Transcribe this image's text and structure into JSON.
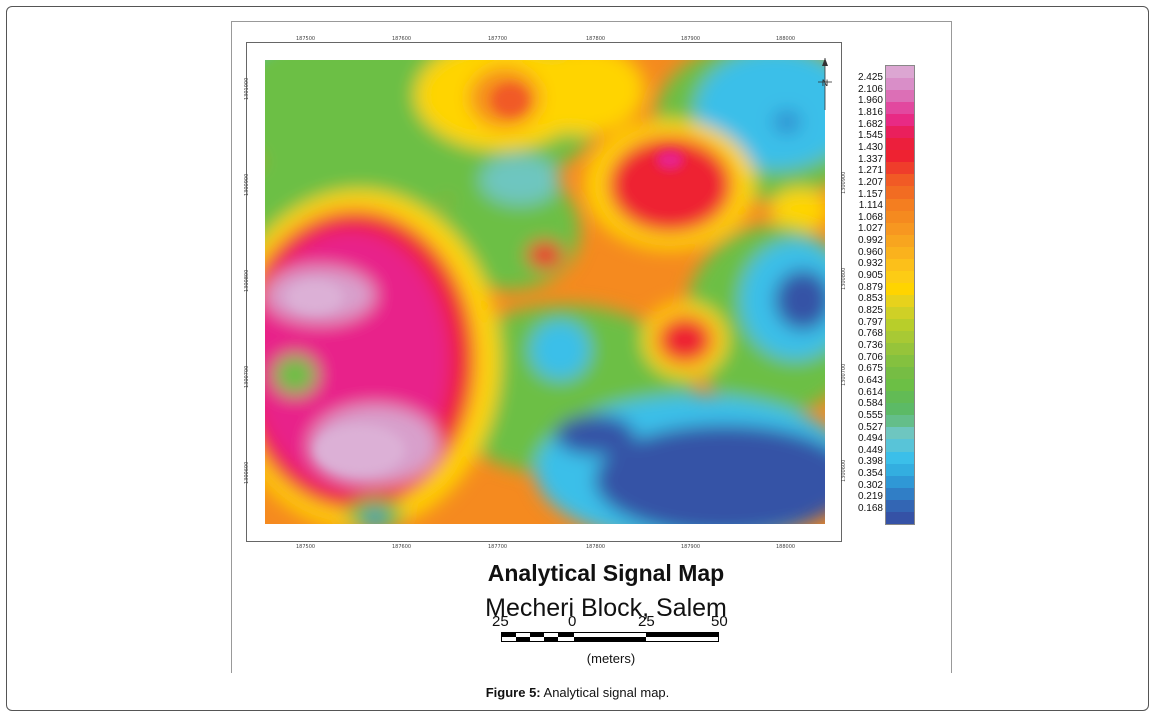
{
  "map": {
    "title": "Analytical Signal Map",
    "subtitle": "Mecheri Block, Salem",
    "x_tick_labels": [
      "187500",
      "187600",
      "187700",
      "187800",
      "187900",
      "188000"
    ],
    "y_tick_labels": [
      "1301000",
      "1300900",
      "1300800",
      "1300700",
      "1300600"
    ],
    "north_label": "N",
    "colors": {
      "pink": "#d8a0cc",
      "magenta": "#e8208a",
      "red": "#ee2231",
      "orange": "#f58a1f",
      "yellow": "#ffd400",
      "lightgreen": "#a8d12f",
      "green": "#6cbf45",
      "teal": "#6ec6c0",
      "lightblue": "#3bbfe9",
      "blue": "#2f8fd0",
      "darkblue": "#3552a6"
    }
  },
  "legend": {
    "values": [
      "2.425",
      "2.106",
      "1.960",
      "1.816",
      "1.682",
      "1.545",
      "1.430",
      "1.337",
      "1.271",
      "1.207",
      "1.157",
      "1.114",
      "1.068",
      "1.027",
      "0.992",
      "0.960",
      "0.932",
      "0.905",
      "0.879",
      "0.853",
      "0.825",
      "0.797",
      "0.768",
      "0.736",
      "0.706",
      "0.675",
      "0.643",
      "0.614",
      "0.584",
      "0.555",
      "0.527",
      "0.494",
      "0.449",
      "0.398",
      "0.354",
      "0.302",
      "0.219",
      "0.168"
    ],
    "swatch_colors": [
      "#dca6d2",
      "#d98ec8",
      "#dc6fb6",
      "#e2489f",
      "#e82a84",
      "#ea1f5c",
      "#ec1f3c",
      "#ee2231",
      "#ef3d2b",
      "#f15a25",
      "#f26c22",
      "#f47e20",
      "#f58a1f",
      "#f79720",
      "#f8a51f",
      "#fab21d",
      "#fcc01a",
      "#fdcc15",
      "#ffd400",
      "#e7d21c",
      "#cfd026",
      "#b8ce2a",
      "#a8c934",
      "#96c43a",
      "#84c13f",
      "#76bd44",
      "#6cbf45",
      "#62bb55",
      "#5cba66",
      "#64be8a",
      "#6ec6c0",
      "#58c4d8",
      "#3bbfe9",
      "#33aee0",
      "#2f98d6",
      "#307ec6",
      "#3366b4",
      "#3552a6"
    ]
  },
  "scale": {
    "labels": [
      "25",
      "0",
      "25",
      "50"
    ],
    "units": "(meters)"
  },
  "caption": {
    "label": "Figure 5:",
    "text": " Analytical signal map."
  }
}
